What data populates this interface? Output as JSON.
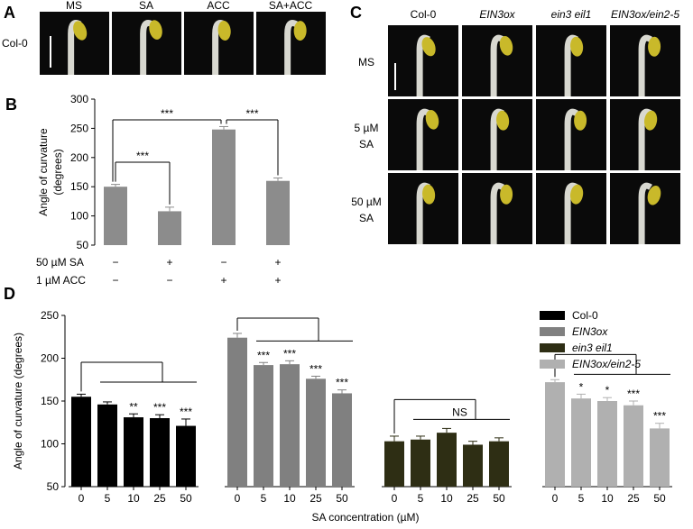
{
  "panels": {
    "letters": [
      "A",
      "B",
      "C",
      "D"
    ]
  },
  "photos_a": {
    "columns": [
      "MS",
      "SA",
      "ACC",
      "SA+ACC"
    ],
    "row": "Col-0"
  },
  "photos_c": {
    "columns": [
      "Col-0",
      "EIN3ox",
      "ein3 eil1",
      "EIN3ox/ein2-5"
    ],
    "rows": [
      [
        "MS"
      ],
      [
        "5 µM",
        "SA"
      ],
      [
        "50 µM",
        "SA"
      ]
    ]
  },
  "chart_data": [
    {
      "type": "bar",
      "ylabel": [
        "Angle of curvature",
        "(degrees)"
      ],
      "color": "#8c8c8c",
      "categories": [
        null,
        null,
        null,
        null
      ],
      "values": [
        150,
        108,
        248,
        160
      ],
      "errors": [
        4,
        7,
        5,
        5
      ],
      "ylim": [
        50,
        300
      ],
      "yticks": [
        50,
        100,
        150,
        200,
        250,
        300
      ],
      "conditions": [
        {
          "name": "50 µM SA",
          "signs": [
            "−",
            "+",
            "−",
            "+"
          ]
        },
        {
          "name": "1 µM ACC",
          "signs": [
            "−",
            "−",
            "+",
            "+"
          ]
        }
      ],
      "annotations": [
        "***",
        "***",
        "***"
      ]
    },
    {
      "type": "grouped-bar",
      "xlabel": "SA concentration (µM)",
      "ylabel": "Angle of curvature (degrees)",
      "categories": [
        "0",
        "5",
        "10",
        "25",
        "50"
      ],
      "ylim": [
        50,
        250
      ],
      "yticks": [
        50,
        100,
        150,
        200,
        250
      ],
      "legend": "top-right",
      "series": [
        {
          "name": "Col-0",
          "color": "#000000",
          "values": [
            155,
            146,
            131,
            130,
            121
          ],
          "errors": [
            3,
            3,
            4,
            4,
            8
          ],
          "significance": [
            null,
            null,
            "**",
            "***",
            "***"
          ]
        },
        {
          "name": "EIN3ox",
          "color": "#808080",
          "values": [
            224,
            192,
            193,
            176,
            159
          ],
          "errors": [
            5,
            3,
            4,
            3,
            4
          ],
          "significance": [
            null,
            "***",
            "***",
            "***",
            "***"
          ]
        },
        {
          "name": "ein3 eil1",
          "color": "#2e2e14",
          "values": [
            103,
            105,
            113,
            99,
            103
          ],
          "errors": [
            6,
            4,
            5,
            4,
            4
          ],
          "significance": [
            null,
            null,
            null,
            null,
            null
          ]
        },
        {
          "name": "EIN3ox/ein2-5",
          "color": "#b0b0b0",
          "values": [
            172,
            153,
            150,
            145,
            118
          ],
          "errors": [
            3,
            5,
            4,
            5,
            6
          ],
          "significance": [
            null,
            "*",
            "*",
            "***",
            "***"
          ]
        }
      ],
      "annotations": [
        "NS"
      ]
    }
  ]
}
